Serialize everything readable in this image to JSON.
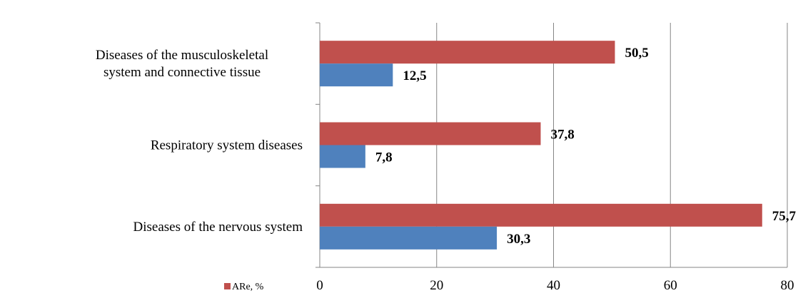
{
  "chart_data": {
    "type": "bar",
    "orientation": "horizontal",
    "categories": [
      [
        "Diseases of the musculoskeletal",
        "system and connective tissue"
      ],
      [
        "Respiratory system diseases"
      ],
      [
        "Diseases of the nervous system"
      ]
    ],
    "series": [
      {
        "name": "ARe, %",
        "color": "#c0504d",
        "values": [
          50.5,
          37.8,
          75.7
        ],
        "labels": [
          "50,5",
          "37,8",
          "75,7"
        ]
      },
      {
        "name": "",
        "color": "#4f81bd",
        "values": [
          12.5,
          7.8,
          30.3
        ],
        "labels": [
          "12,5",
          "7,8",
          "30,3"
        ]
      }
    ],
    "xlim": [
      0,
      80
    ],
    "xticks": [
      0,
      20,
      40,
      60,
      80
    ],
    "xtick_labels": [
      "0",
      "20",
      "40",
      "60",
      "80"
    ],
    "grid": true,
    "legend": "bottom-left",
    "title": "",
    "xlabel": "",
    "ylabel": ""
  }
}
